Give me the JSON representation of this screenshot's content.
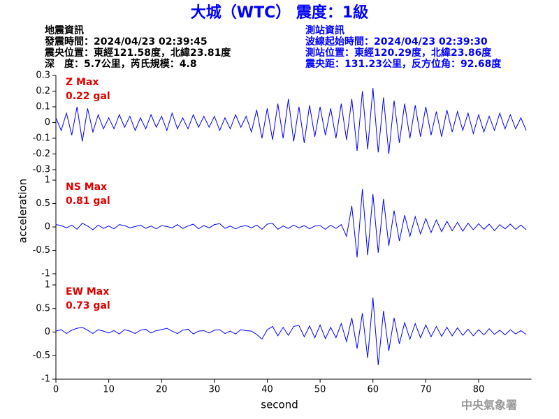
{
  "title": "大城（WTC） 震度：1級",
  "info": {
    "left": [
      "地震資訊",
      "發震時間：2024/04/23 02:39:45",
      "震央位置：東經121.58度，北緯23.81度",
      "深　度：5.7公里，芮氏規模：4.8"
    ],
    "right": [
      "測站資訊",
      "波線起始時間：2024/04/23 02:39:30",
      "測站位置：東經120.29度，北緯23.86度",
      "震央距：131.23公里，反方位角：92.68度"
    ]
  },
  "y_label": "acceleration",
  "x_label": "second",
  "footer": "中央氣象署",
  "chart_data": [
    {
      "type": "line",
      "label": "Z Max",
      "max_label": "0.22 gal",
      "color": "#0000ff",
      "xlim": [
        0,
        90
      ],
      "ylim": [
        -0.3,
        0.3
      ],
      "yticks": [
        0.3,
        0.2,
        0.1,
        0,
        -0.1,
        -0.2,
        -0.3
      ],
      "x": [
        0,
        1,
        2,
        3,
        4,
        5,
        6,
        7,
        8,
        9,
        10,
        11,
        12,
        13,
        14,
        15,
        16,
        17,
        18,
        19,
        20,
        21,
        22,
        23,
        24,
        25,
        26,
        27,
        28,
        29,
        30,
        31,
        32,
        33,
        34,
        35,
        36,
        37,
        38,
        39,
        40,
        41,
        42,
        43,
        44,
        45,
        46,
        47,
        48,
        49,
        50,
        51,
        52,
        53,
        54,
        55,
        56,
        57,
        58,
        59,
        60,
        61,
        62,
        63,
        64,
        65,
        66,
        67,
        68,
        69,
        70,
        71,
        72,
        73,
        74,
        75,
        76,
        77,
        78,
        79,
        80,
        81,
        82,
        83,
        84,
        85,
        86,
        87,
        88,
        89
      ],
      "values": [
        0.03,
        -0.05,
        0.06,
        -0.08,
        0.1,
        -0.12,
        0.09,
        -0.06,
        0.05,
        -0.04,
        0.03,
        -0.04,
        0.05,
        -0.03,
        0.04,
        -0.05,
        0.03,
        -0.04,
        0.05,
        -0.03,
        0.04,
        -0.05,
        0.06,
        -0.04,
        0.03,
        -0.04,
        0.05,
        -0.03,
        0.04,
        -0.03,
        0.04,
        -0.05,
        0.03,
        -0.04,
        0.05,
        -0.03,
        0.04,
        -0.06,
        0.08,
        -0.1,
        0.09,
        -0.11,
        0.12,
        -0.1,
        0.15,
        -0.12,
        0.1,
        -0.13,
        0.11,
        -0.09,
        0.1,
        -0.08,
        0.09,
        -0.1,
        0.12,
        -0.11,
        0.15,
        -0.18,
        0.2,
        -0.17,
        0.22,
        -0.19,
        0.16,
        -0.2,
        0.14,
        -0.13,
        0.12,
        -0.1,
        0.11,
        -0.09,
        0.1,
        -0.08,
        0.07,
        -0.09,
        0.08,
        -0.06,
        0.07,
        -0.05,
        0.06,
        -0.07,
        0.05,
        -0.06,
        0.04,
        -0.05,
        0.06,
        -0.04,
        0.05,
        -0.04,
        0.03,
        -0.05
      ]
    },
    {
      "type": "line",
      "label": "NS Max",
      "max_label": "0.81 gal",
      "color": "#0000ff",
      "xlim": [
        0,
        90
      ],
      "ylim": [
        -1,
        1
      ],
      "yticks": [
        1,
        0.5,
        0,
        -0.5,
        -1
      ],
      "x": [
        0,
        1,
        2,
        3,
        4,
        5,
        6,
        7,
        8,
        9,
        10,
        11,
        12,
        13,
        14,
        15,
        16,
        17,
        18,
        19,
        20,
        21,
        22,
        23,
        24,
        25,
        26,
        27,
        28,
        29,
        30,
        31,
        32,
        33,
        34,
        35,
        36,
        37,
        38,
        39,
        40,
        41,
        42,
        43,
        44,
        45,
        46,
        47,
        48,
        49,
        50,
        51,
        52,
        53,
        54,
        55,
        56,
        57,
        58,
        59,
        60,
        61,
        62,
        63,
        64,
        65,
        66,
        67,
        68,
        69,
        70,
        71,
        72,
        73,
        74,
        75,
        76,
        77,
        78,
        79,
        80,
        81,
        82,
        83,
        84,
        85,
        86,
        87,
        88,
        89
      ],
      "values": [
        0.05,
        0.03,
        -0.02,
        0.04,
        -0.05,
        0.08,
        0.02,
        -0.06,
        0.04,
        -0.03,
        0.02,
        -0.04,
        0.05,
        0.03,
        -0.02,
        0.01,
        0.04,
        -0.03,
        0.02,
        -0.04,
        0.03,
        0.01,
        -0.02,
        0.05,
        -0.03,
        0.02,
        0.06,
        -0.04,
        0.03,
        -0.02,
        0.05,
        0.07,
        -0.03,
        0.02,
        -0.04,
        0.01,
        0.03,
        -0.02,
        0.04,
        -0.05,
        0.06,
        0.08,
        -0.05,
        0.02,
        -0.03,
        0.04,
        -0.02,
        0.03,
        -0.04,
        0.02,
        0.03,
        -0.05,
        0.04,
        -0.03,
        0.05,
        -0.2,
        0.45,
        -0.65,
        0.81,
        -0.6,
        0.7,
        -0.55,
        0.6,
        -0.4,
        0.35,
        -0.3,
        0.25,
        -0.2,
        0.22,
        -0.15,
        0.18,
        -0.12,
        0.15,
        -0.1,
        0.12,
        -0.08,
        0.1,
        -0.09,
        0.08,
        -0.06,
        0.07,
        -0.05,
        0.06,
        -0.08,
        0.05,
        -0.04,
        0.06,
        -0.05,
        0.04,
        -0.06
      ]
    },
    {
      "type": "line",
      "label": "EW Max",
      "max_label": "0.73 gal",
      "color": "#0000ff",
      "xlim": [
        0,
        90
      ],
      "ylim": [
        -1,
        1
      ],
      "yticks": [
        1,
        0.5,
        0,
        -0.5,
        -1
      ],
      "xticks": [
        0,
        10,
        20,
        30,
        40,
        50,
        60,
        70,
        80
      ],
      "x": [
        0,
        1,
        2,
        3,
        4,
        5,
        6,
        7,
        8,
        9,
        10,
        11,
        12,
        13,
        14,
        15,
        16,
        17,
        18,
        19,
        20,
        21,
        22,
        23,
        24,
        25,
        26,
        27,
        28,
        29,
        30,
        31,
        32,
        33,
        34,
        35,
        36,
        37,
        38,
        39,
        40,
        41,
        42,
        43,
        44,
        45,
        46,
        47,
        48,
        49,
        50,
        51,
        52,
        53,
        54,
        55,
        56,
        57,
        58,
        59,
        60,
        61,
        62,
        63,
        64,
        65,
        66,
        67,
        68,
        69,
        70,
        71,
        72,
        73,
        74,
        75,
        76,
        77,
        78,
        79,
        80,
        81,
        82,
        83,
        84,
        85,
        86,
        87,
        88,
        89
      ],
      "values": [
        0.02,
        0.05,
        -0.03,
        0.04,
        0.08,
        0.1,
        0.04,
        -0.03,
        0.05,
        0.02,
        -0.02,
        0.03,
        -0.04,
        0.05,
        0.02,
        -0.03,
        0.04,
        0.06,
        -0.02,
        0.03,
        0.05,
        0.08,
        0.02,
        -0.03,
        0.04,
        0.06,
        -0.04,
        0.02,
        0.03,
        -0.02,
        0.04,
        0.05,
        -0.03,
        0.02,
        -0.04,
        0.05,
        0.03,
        0.02,
        -0.05,
        -0.15,
        0.05,
        0.12,
        -0.08,
        0.1,
        -0.07,
        0.12,
        0.14,
        -0.1,
        0.13,
        -0.12,
        0.15,
        -0.14,
        0.1,
        -0.12,
        0.18,
        -0.2,
        0.3,
        -0.35,
        0.4,
        -0.55,
        0.73,
        -0.7,
        0.45,
        -0.4,
        0.3,
        -0.25,
        0.2,
        -0.15,
        0.18,
        -0.12,
        0.15,
        -0.1,
        0.12,
        -0.09,
        0.1,
        -0.08,
        0.09,
        -0.07,
        0.06,
        -0.08,
        0.05,
        -0.06,
        0.07,
        -0.05,
        0.04,
        -0.06,
        0.05,
        -0.04,
        0.03,
        -0.05
      ]
    }
  ]
}
